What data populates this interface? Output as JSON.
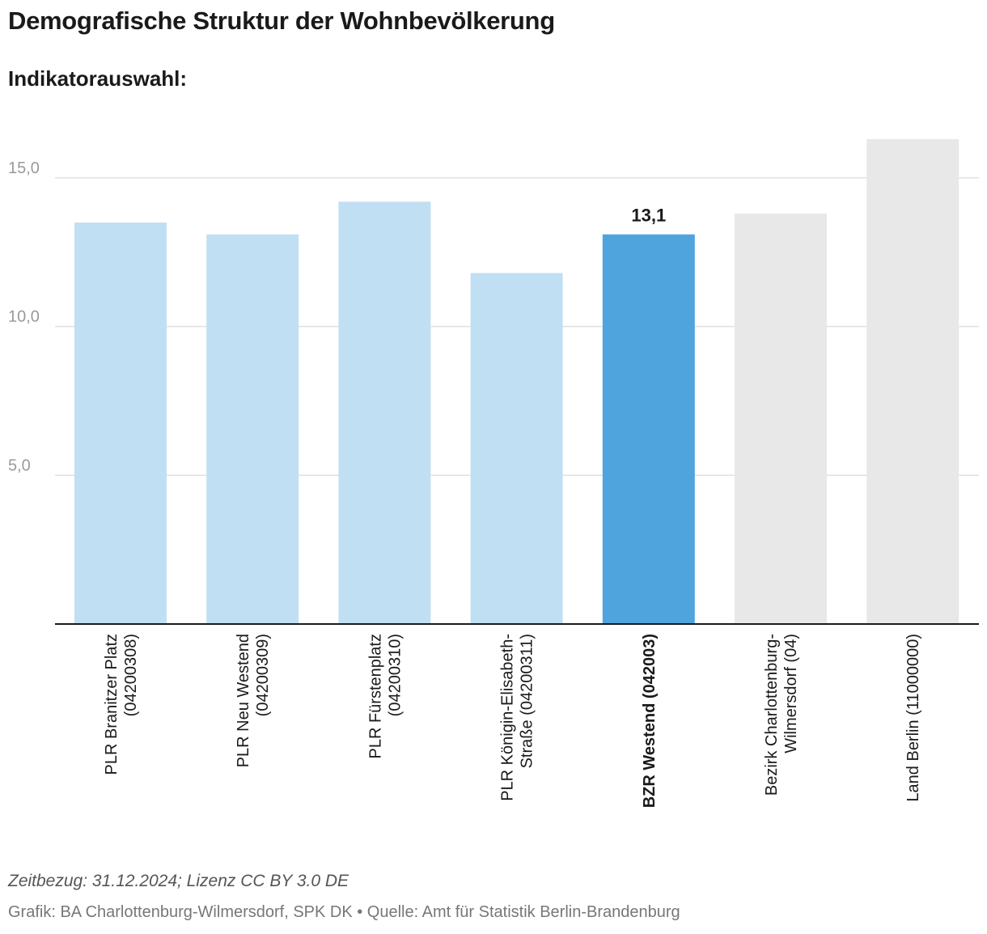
{
  "header": {
    "title": "Demografische Struktur der Wohnbevölkerung",
    "subtitle": "Indikatorauswahl:"
  },
  "footer": {
    "note": "Zeitbezug: 31.12.2024; Lizenz CC BY 3.0 DE",
    "source": "Grafik: BA Charlottenburg-Wilmersdorf, SPK DK • Quelle: Amt für Statistik Berlin-Brandenburg"
  },
  "colors": {
    "plr": "#c1dff3",
    "highlight": "#4fa4dd",
    "other": "#e8e8e8",
    "grid": "#e0e0e0",
    "axis": "#1a1a1a"
  },
  "chart_data": {
    "type": "bar",
    "title": "Demografische Struktur der Wohnbevölkerung",
    "xlabel": "",
    "ylabel": "",
    "ylim": [
      0,
      16.3
    ],
    "yticks": [
      5,
      10,
      15
    ],
    "ytick_labels": [
      "5,0",
      "10,0",
      "15,0"
    ],
    "grid": true,
    "categories": [
      {
        "lines": [
          "PLR Branitzer Platz",
          "(04200308)"
        ],
        "group": "plr",
        "bold": false
      },
      {
        "lines": [
          "PLR Neu Westend",
          "(04200309)"
        ],
        "group": "plr",
        "bold": false
      },
      {
        "lines": [
          "PLR Fürstenplatz",
          "(04200310)"
        ],
        "group": "plr",
        "bold": false
      },
      {
        "lines": [
          "PLR Königin-Elisabeth-",
          "Straße (04200311)"
        ],
        "group": "plr",
        "bold": false
      },
      {
        "lines": [
          "BZR Westend (042003)"
        ],
        "group": "highlight",
        "bold": true
      },
      {
        "lines": [
          "Bezirk Charlottenburg-",
          "Wilmersdorf (04)"
        ],
        "group": "other",
        "bold": false
      },
      {
        "lines": [
          "Land Berlin (11000000)"
        ],
        "group": "other",
        "bold": false
      }
    ],
    "values": [
      13.5,
      13.1,
      14.2,
      11.8,
      13.1,
      13.8,
      16.3
    ],
    "data_labels": [
      {
        "index": 4,
        "text": "13,1"
      }
    ]
  }
}
